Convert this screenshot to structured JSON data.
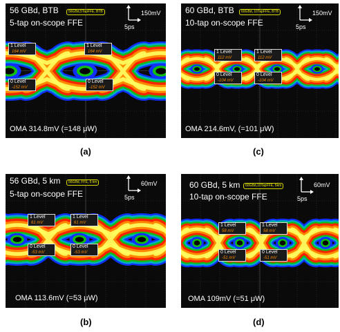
{
  "panels": [
    {
      "id": "a",
      "title": "56 GBd, BTB",
      "tag": "56GBd,5TapFFE, BTB",
      "subtitle": "5-tap on-scope FFE",
      "v_scale": "150mV",
      "t_scale": "5ps",
      "oma": "OMA 314.8mV (=148 μW)",
      "caption": "(a)",
      "levels": [
        {
          "name": "1 Level",
          "value": "164 mV"
        },
        {
          "name": "1 Level",
          "value": "164 mV"
        },
        {
          "name": "0 Level",
          "value": "-152 mV"
        },
        {
          "name": "0 Level",
          "value": "-152 mV"
        }
      ]
    },
    {
      "id": "c",
      "title": "60 GBd, BTB",
      "tag": "60GBd, 10TapFFE, BTB",
      "subtitle": "10-tap on-scope FFE",
      "v_scale": "150mV",
      "t_scale": "5ps",
      "oma": "OMA 214.6mV, (=101 μW)",
      "caption": "(c)",
      "levels": [
        {
          "name": "1 Level",
          "value": "112 mV"
        },
        {
          "name": "1 Level",
          "value": "112 mV"
        },
        {
          "name": "0 Level",
          "value": "-104 mV"
        },
        {
          "name": "0 Level",
          "value": "-104 mV"
        }
      ]
    },
    {
      "id": "b",
      "title": "56 GBd, 5 km",
      "tag": "56GBd, FFE, 5 km",
      "subtitle": "5-tap on-scope FFE",
      "v_scale": "60mV",
      "t_scale": "5ps",
      "oma": "OMA 113.6mV (=53 μW)",
      "caption": "(b)",
      "levels": [
        {
          "name": "1 Level",
          "value": "61 mV"
        },
        {
          "name": "1 Level",
          "value": "61 mV"
        },
        {
          "name": "0 Level",
          "value": "-53 mV"
        },
        {
          "name": "0 Level",
          "value": "-53 mV"
        }
      ]
    },
    {
      "id": "d",
      "title": "60 GBd, 5 km",
      "tag": "60GBd,10TapFFE, 5km",
      "subtitle": "10-tap on-scope FFE",
      "v_scale": "60mV",
      "t_scale": "5ps",
      "oma": "OMA 109mV (=51 μW)",
      "caption": "(d)",
      "levels": [
        {
          "name": "1 Level",
          "value": "58 mV"
        },
        {
          "name": "1 Level",
          "value": "58 mV"
        },
        {
          "name": "0 Level",
          "value": "-51 mV"
        },
        {
          "name": "0 Level",
          "value": "-51 mV"
        }
      ]
    }
  ],
  "colors": {
    "background": "#0a0a0a",
    "grid": "#4a4a4a",
    "level_value": "#ff8c00",
    "tag": "#e6e600"
  }
}
